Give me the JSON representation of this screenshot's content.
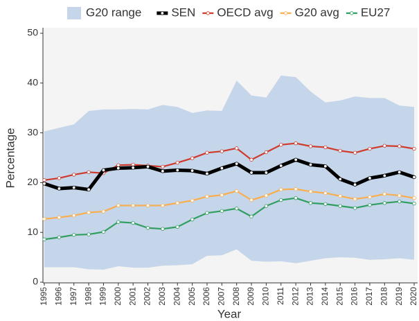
{
  "chart_data": {
    "type": "line",
    "x_label": "Year",
    "y_label": "Percentage",
    "x": [
      1995,
      1996,
      1997,
      1998,
      1999,
      2000,
      2001,
      2002,
      2003,
      2004,
      2005,
      2006,
      2007,
      2008,
      2009,
      2010,
      2011,
      2012,
      2013,
      2014,
      2015,
      2016,
      2017,
      2018,
      2019,
      2020
    ],
    "xlim": [
      1995,
      2020
    ],
    "xticks": [
      1995,
      1996,
      1997,
      1998,
      1999,
      2000,
      2001,
      2002,
      2003,
      2004,
      2005,
      2006,
      2007,
      2008,
      2009,
      2010,
      2011,
      2012,
      2013,
      2014,
      2015,
      2016,
      2017,
      2018,
      2019,
      2020
    ],
    "ylim": [
      0,
      50
    ],
    "yticks": [
      0,
      10,
      20,
      30,
      40,
      50
    ],
    "legend": "top",
    "range": {
      "name": "G20 range",
      "color": "#c6d6ea",
      "upper": [
        30.3,
        31,
        31.7,
        34.4,
        34.7,
        34.7,
        34.8,
        34.7,
        35.6,
        35.2,
        34,
        34.5,
        34.4,
        40.5,
        37.5,
        37.1,
        41.5,
        41.2,
        38.3,
        36.1,
        36.5,
        37.3,
        37,
        37,
        35.5,
        35.2
      ],
      "lower": [
        3,
        3,
        3,
        2.6,
        2.5,
        3.2,
        2.9,
        2.9,
        3.3,
        3.4,
        3.6,
        5.3,
        5.4,
        6.6,
        4.3,
        4.1,
        4.2,
        3.8,
        4.3,
        4.8,
        5,
        4.9,
        4.5,
        4.6,
        4.8,
        4.5
      ]
    },
    "series": [
      {
        "name": "SEN",
        "color": "#000000",
        "values": [
          19.8,
          18.8,
          19,
          18.6,
          22.5,
          22.9,
          23,
          23.2,
          22.3,
          22.5,
          22.4,
          21.8,
          22.9,
          23.8,
          22,
          22,
          23.4,
          24.6,
          23.6,
          23.3,
          20.7,
          19.6,
          20.9,
          21.4,
          22.1,
          21.1
        ]
      },
      {
        "name": "OECD avg",
        "color": "#cf3a2b",
        "values": [
          20.5,
          20.9,
          21.6,
          22.1,
          21.9,
          23.5,
          23.6,
          23.4,
          23.2,
          24,
          24.9,
          26,
          26.3,
          26.9,
          24.6,
          26.1,
          27.6,
          27.9,
          27.3,
          27.1,
          26.4,
          26,
          26.8,
          27.4,
          27.3,
          26.8
        ]
      },
      {
        "name": "G20 avg",
        "color": "#f8ad4e",
        "values": [
          12.7,
          13,
          13.4,
          14,
          14.2,
          15.4,
          15.4,
          15.4,
          15.4,
          15.9,
          16.4,
          17.2,
          17.5,
          18.3,
          16.5,
          17.4,
          18.6,
          18.7,
          18.2,
          17.9,
          17.3,
          16.7,
          17.1,
          17.7,
          17.4,
          16.9
        ]
      },
      {
        "name": "EU27",
        "color": "#2f9e5e",
        "values": [
          8.6,
          9,
          9.5,
          9.6,
          10.1,
          12.1,
          11.9,
          10.9,
          10.7,
          11.1,
          12.6,
          13.9,
          14.3,
          14.8,
          13.2,
          15.3,
          16.5,
          16.9,
          15.9,
          15.7,
          15.3,
          14.9,
          15.5,
          15.9,
          16.2,
          15.8
        ]
      }
    ]
  }
}
